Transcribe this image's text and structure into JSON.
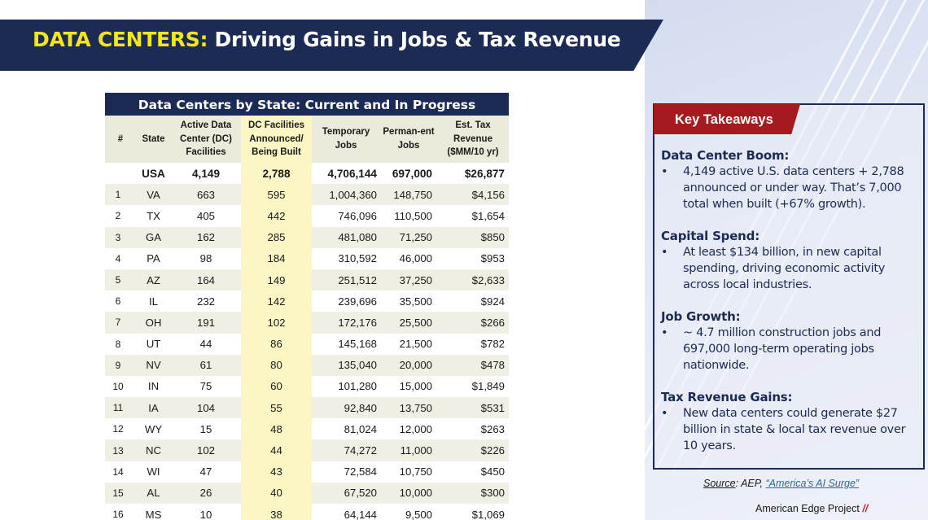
{
  "banner": {
    "highlight": "DATA CENTERS:",
    "rest": " Driving Gains in Jobs & Tax Revenue"
  },
  "table": {
    "title": "Data Centers by State: Current and In Progress",
    "headers": [
      "#",
      "State",
      "Active Data Center (DC) Facilities",
      "DC Facilities Announced/ Being Built",
      "Temporary Jobs",
      "Perman-ent Jobs",
      "Est. Tax Revenue ($MM/10 yr)"
    ],
    "usa": {
      "state": "USA",
      "active": "4,149",
      "announced": "2,788",
      "temp": "4,706,144",
      "perm": "697,000",
      "tax": "$26,877"
    },
    "rows": [
      {
        "rank": "1",
        "state": "VA",
        "active": "663",
        "announced": "595",
        "temp": "1,004,360",
        "perm": "148,750",
        "tax": "$4,156"
      },
      {
        "rank": "2",
        "state": "TX",
        "active": "405",
        "announced": "442",
        "temp": "746,096",
        "perm": "110,500",
        "tax": "$1,654"
      },
      {
        "rank": "3",
        "state": "GA",
        "active": "162",
        "announced": "285",
        "temp": "481,080",
        "perm": "71,250",
        "tax": "$850"
      },
      {
        "rank": "4",
        "state": "PA",
        "active": "98",
        "announced": "184",
        "temp": "310,592",
        "perm": "46,000",
        "tax": "$953"
      },
      {
        "rank": "5",
        "state": "AZ",
        "active": "164",
        "announced": "149",
        "temp": "251,512",
        "perm": "37,250",
        "tax": "$2,633"
      },
      {
        "rank": "6",
        "state": "IL",
        "active": "232",
        "announced": "142",
        "temp": "239,696",
        "perm": "35,500",
        "tax": "$924"
      },
      {
        "rank": "7",
        "state": "OH",
        "active": "191",
        "announced": "102",
        "temp": "172,176",
        "perm": "25,500",
        "tax": "$266"
      },
      {
        "rank": "8",
        "state": "UT",
        "active": "44",
        "announced": "86",
        "temp": "145,168",
        "perm": "21,500",
        "tax": "$782"
      },
      {
        "rank": "9",
        "state": "NV",
        "active": "61",
        "announced": "80",
        "temp": "135,040",
        "perm": "20,000",
        "tax": "$478"
      },
      {
        "rank": "10",
        "state": "IN",
        "active": "75",
        "announced": "60",
        "temp": "101,280",
        "perm": "15,000",
        "tax": "$1,849"
      },
      {
        "rank": "11",
        "state": "IA",
        "active": "104",
        "announced": "55",
        "temp": "92,840",
        "perm": "13,750",
        "tax": "$531"
      },
      {
        "rank": "12",
        "state": "WY",
        "active": "15",
        "announced": "48",
        "temp": "81,024",
        "perm": "12,000",
        "tax": "$263"
      },
      {
        "rank": "13",
        "state": "NC",
        "active": "102",
        "announced": "44",
        "temp": "74,272",
        "perm": "11,000",
        "tax": "$226"
      },
      {
        "rank": "14",
        "state": "WI",
        "active": "47",
        "announced": "43",
        "temp": "72,584",
        "perm": "10,750",
        "tax": "$450"
      },
      {
        "rank": "15",
        "state": "AL",
        "active": "26",
        "announced": "40",
        "temp": "67,520",
        "perm": "10,000",
        "tax": "$300"
      },
      {
        "rank": "16",
        "state": "MS",
        "active": "10",
        "announced": "38",
        "temp": "64,144",
        "perm": "9,500",
        "tax": "$1,069"
      }
    ]
  },
  "takeaways": {
    "title": "Key Takeaways",
    "sections": [
      {
        "heading": "Data Center Boom:",
        "bullet": "4,149 active U.S. data centers + 2,788 announced or under way. That’s 7,000 total when built (+67% growth)."
      },
      {
        "heading": "Capital Spend:",
        "bullet": "At least $134 billion, in new capital spending, driving economic activity across local industries."
      },
      {
        "heading": "Job Growth:",
        "bullet": "~ 4.7 million construction jobs and 697,000 long-term operating jobs nationwide."
      },
      {
        "heading": "Tax Revenue Gains:",
        "bullet": "New data centers could generate $27 billion in state & local tax revenue over 10 years."
      }
    ]
  },
  "source": {
    "label": "Source",
    "org": ": AEP, ",
    "link": "“America’s AI Surge”"
  },
  "brand": {
    "name": "American Edge Project ",
    "mark": "//"
  },
  "colors": {
    "navy": "#1c2b55",
    "highlight_yellow": "#f5e51b",
    "takeaway_red": "#a51a1e",
    "column_highlight": "#fbf6c4"
  }
}
